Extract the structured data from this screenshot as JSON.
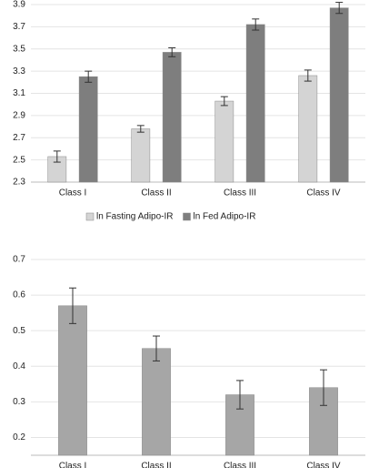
{
  "chart_data": [
    {
      "type": "bar",
      "categories": [
        "Class I",
        "Class II",
        "Class III",
        "Class IV"
      ],
      "series": [
        {
          "name": "ln Fasting Adipo-IR",
          "color": "#d4d4d4",
          "values": [
            2.53,
            2.78,
            3.03,
            3.26
          ],
          "errors": [
            0.05,
            0.03,
            0.04,
            0.05
          ]
        },
        {
          "name": "ln Fed Adipo-IR",
          "color": "#7e7e7e",
          "values": [
            3.25,
            3.47,
            3.72,
            3.87
          ],
          "errors": [
            0.05,
            0.04,
            0.05,
            0.05
          ]
        }
      ],
      "ylim": [
        2.3,
        3.9
      ],
      "yticks": [
        2.3,
        2.5,
        2.7,
        2.9,
        3.1,
        3.3,
        3.5,
        3.7,
        3.9
      ],
      "grid": true,
      "legend": "bottom"
    },
    {
      "type": "bar",
      "categories": [
        "Class I",
        "Class II",
        "Class III",
        "Class IV"
      ],
      "values": [
        0.57,
        0.45,
        0.32,
        0.34
      ],
      "errors": [
        0.05,
        0.035,
        0.04,
        0.05
      ],
      "color": "#a6a6a6",
      "ylim": [
        0.15,
        0.7
      ],
      "yticks": [
        0.2,
        0.3,
        0.4,
        0.5,
        0.6,
        0.7
      ],
      "grid": true
    }
  ]
}
